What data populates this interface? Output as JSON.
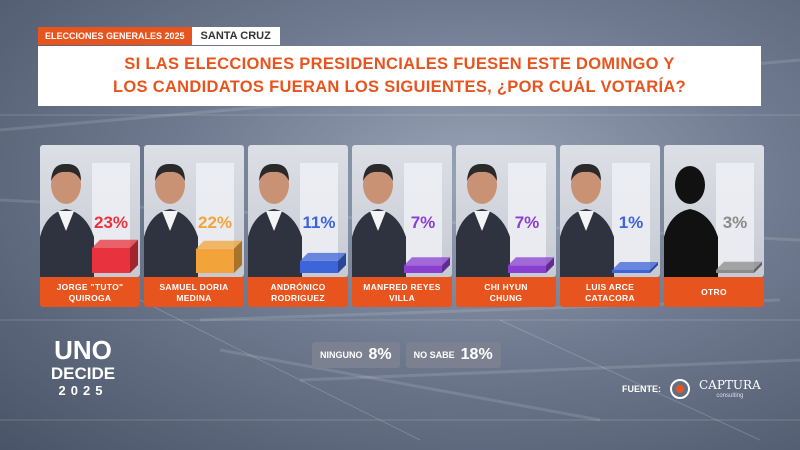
{
  "header": {
    "election_tag": "ELECCIONES GENERALES 2025",
    "region_tag": "SANTA CRUZ"
  },
  "question": {
    "line1": "SI LAS ELECCIONES PRESIDENCIALES FUESEN ESTE DOMINGO Y",
    "line2": "LOS CANDIDATOS FUERAN LOS SIGUIENTES, ¿POR CUÁL VOTARÍA?"
  },
  "chart_data": {
    "type": "bar",
    "categories": [
      "JORGE \"TUTO\" QUIROGA",
      "SAMUEL DORIA MEDINA",
      "ANDRÓNICO RODRIGUEZ",
      "MANFRED REYES VILLA",
      "CHI HYUN CHUNG",
      "LUIS ARCE CATACORA",
      "OTRO"
    ],
    "values": [
      23,
      22,
      11,
      7,
      7,
      1,
      3
    ],
    "value_labels": [
      "23%",
      "22%",
      "11%",
      "7%",
      "7%",
      "1%",
      "3%"
    ],
    "bar_colors": [
      "#e8333f",
      "#f2a43a",
      "#3d64d8",
      "#8a3fd1",
      "#8a3fd1",
      "#3d64d8",
      "#8b8b8b"
    ],
    "candidates": [
      {
        "line1": "JORGE \"TUTO\"",
        "line2": "QUIROGA"
      },
      {
        "line1": "SAMUEL DORIA",
        "line2": "MEDINA"
      },
      {
        "line1": "ANDRÓNICO",
        "line2": "RODRIGUEZ"
      },
      {
        "line1": "MANFRED REYES",
        "line2": "VILLA"
      },
      {
        "line1": "CHI HYUN",
        "line2": "CHUNG"
      },
      {
        "line1": "LUIS ARCE",
        "line2": "CATACORA"
      },
      {
        "line1": "OTRO",
        "line2": ""
      }
    ],
    "ylim": [
      0,
      100
    ]
  },
  "extras": {
    "ninguno_label": "NINGUNO",
    "ninguno_value": "8%",
    "nosabe_label": "NO SABE",
    "nosabe_value": "18%"
  },
  "logo": {
    "line1": "UNO",
    "line2": "DECIDE",
    "line3": "2025"
  },
  "source": {
    "label": "FUENTE:",
    "brand": "CAPTURA",
    "sub": "consulting"
  },
  "colors": {
    "accent": "#e8541e",
    "pill": "#7b8190"
  }
}
